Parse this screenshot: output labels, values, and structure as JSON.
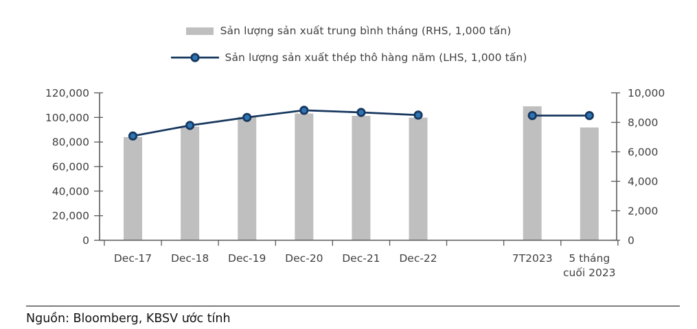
{
  "legend": {
    "items": [
      {
        "label": "Sản lượng sản xuất trung bình tháng (RHS, 1,000 tấn)",
        "swatch": "bar",
        "color": "#BFBFBF"
      },
      {
        "label": "Sản lượng sản xuất thép thô hàng năm (LHS, 1,000 tấn)",
        "swatch": "line-marker",
        "line_color": "#17375E",
        "marker_fill": "#2E75B6"
      }
    ]
  },
  "chart_data": {
    "type": "bar+line combo",
    "title": "",
    "grid": false,
    "legend_position": "top",
    "categories": [
      "Dec-17",
      "Dec-18",
      "Dec-19",
      "Dec-20",
      "Dec-21",
      "Dec-22",
      "",
      "7T2023",
      "5 tháng cuối 2023"
    ],
    "category_label_lines": [
      [
        "Dec-17"
      ],
      [
        "Dec-18"
      ],
      [
        "Dec-19"
      ],
      [
        "Dec-20"
      ],
      [
        "Dec-21"
      ],
      [
        "Dec-22"
      ],
      [],
      [
        "7T2023"
      ],
      [
        "5 tháng",
        "cuối 2023"
      ]
    ],
    "series": [
      {
        "name": "Sản lượng sản xuất trung bình tháng (RHS, 1,000 tấn)",
        "type": "bar",
        "axis": "right",
        "color": "#BFBFBF",
        "values": [
          7000,
          7700,
          8370,
          8600,
          8440,
          8320,
          null,
          9090,
          7650
        ]
      },
      {
        "name": "Sản lượng sản xuất thép thô hàng năm (LHS, 1,000 tấn)",
        "type": "line",
        "axis": "left",
        "color": "#17375E",
        "marker_fill": "#2E75B6",
        "values": [
          84900,
          93500,
          100000,
          105800,
          104100,
          101900,
          null,
          101500,
          101500
        ]
      }
    ],
    "left_axis": {
      "min": 0,
      "max": 120000,
      "step": 20000,
      "tick_labels": [
        "0",
        "20,000",
        "40,000",
        "60,000",
        "80,000",
        "100,000",
        "120,000"
      ]
    },
    "right_axis": {
      "min": 0,
      "max": 10000,
      "step": 2000,
      "tick_labels": [
        "0",
        "2,000",
        "4,000",
        "6,000",
        "8,000",
        "10,000"
      ]
    },
    "axis_color": "#595959",
    "label_color": "#404040"
  },
  "footer": {
    "source_text": "Nguồn: Bloomberg, KBSV ước tính"
  }
}
